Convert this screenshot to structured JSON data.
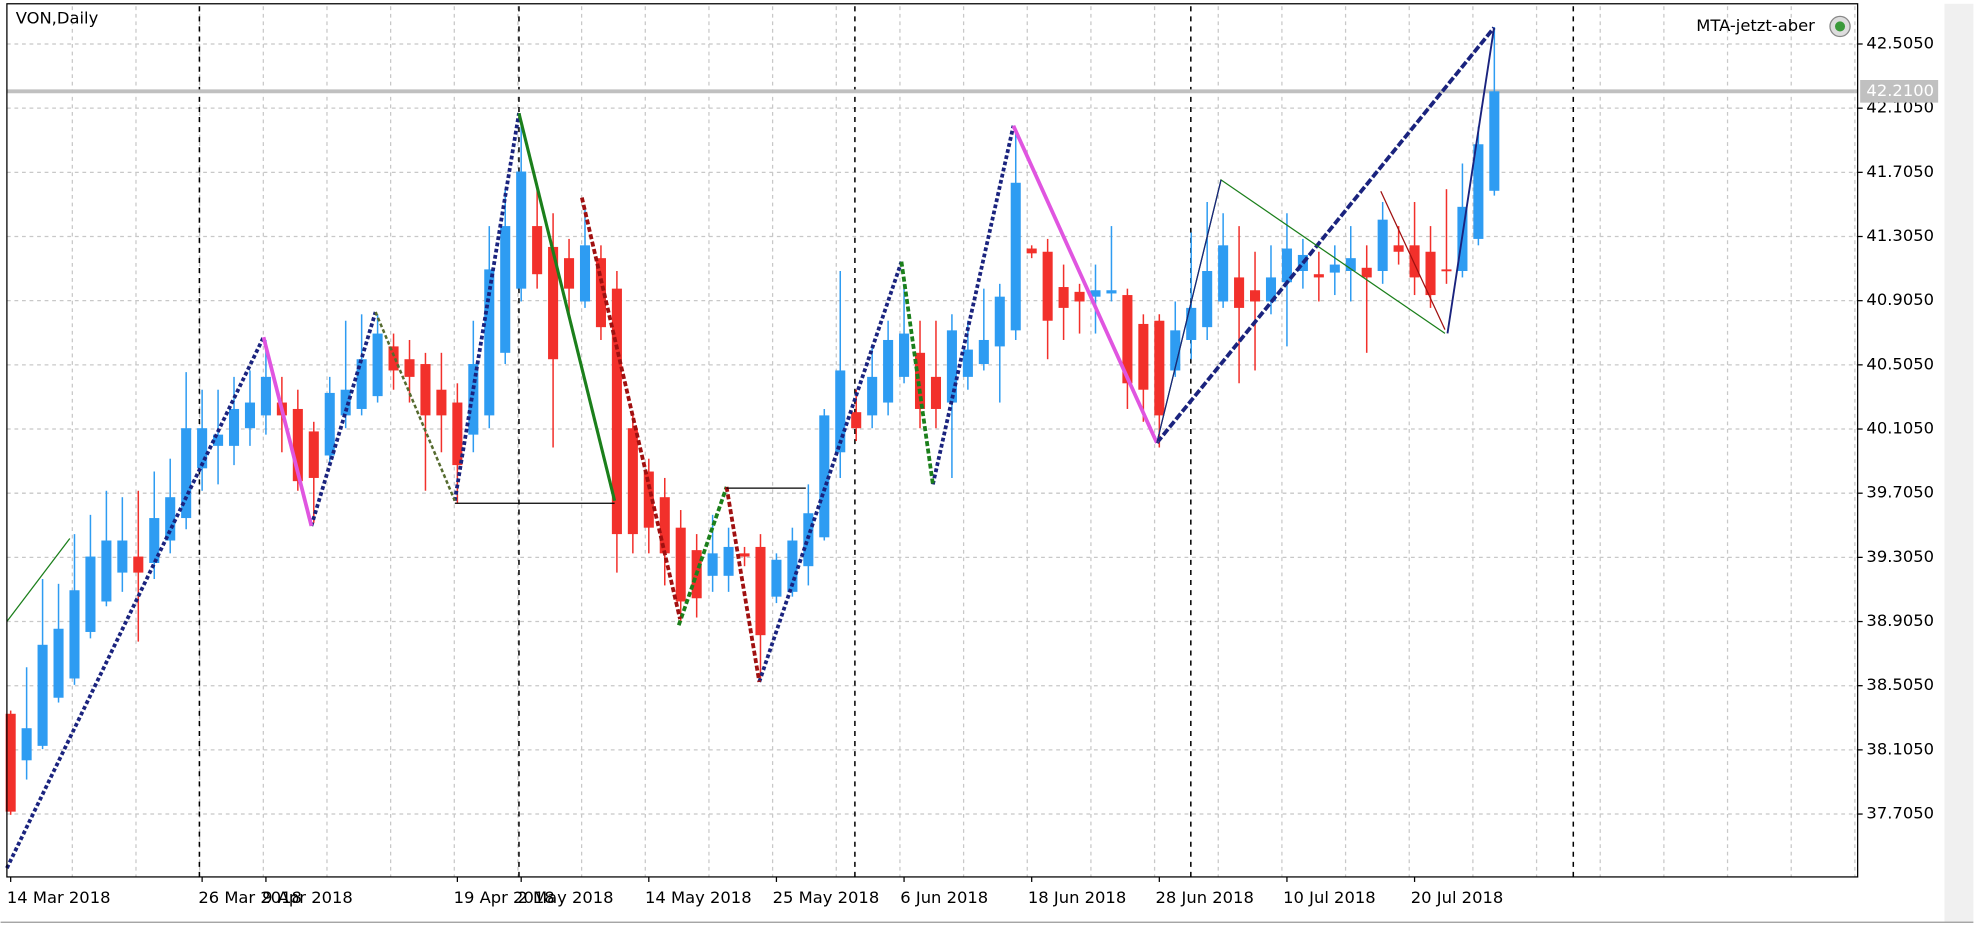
{
  "chart_data": {
    "type": "candlestick",
    "title": "VON,Daily",
    "indicator_label": "MTA-jetzt-aber",
    "categories": [
      "14 Mar 2018",
      null,
      null,
      null,
      null,
      null,
      null,
      null,
      null,
      null,
      null,
      null,
      "26 Mar 2018",
      null,
      null,
      null,
      "9 Apr 2018",
      null,
      null,
      null,
      null,
      null,
      null,
      null,
      null,
      null,
      null,
      null,
      "19 Apr 2018",
      null,
      null,
      null,
      "2 May 2018",
      null,
      null,
      null,
      null,
      null,
      null,
      null,
      "14 May 2018",
      null,
      null,
      null,
      null,
      null,
      null,
      null,
      "25 May 2018",
      null,
      null,
      null,
      null,
      null,
      null,
      null,
      "6 Jun 2018",
      null,
      null,
      null,
      null,
      null,
      null,
      null,
      "18 Jun 2018",
      null,
      null,
      null,
      null,
      null,
      null,
      null,
      "28 Jun 2018",
      null,
      null,
      null,
      null,
      null,
      null,
      null,
      "10 Jul 2018",
      null,
      null,
      null,
      null,
      null,
      null,
      null,
      "20 Jul 2018",
      null,
      null,
      null,
      null,
      null
    ],
    "open": [
      38.33,
      38.04,
      38.13,
      38.43,
      38.55,
      38.84,
      39.03,
      39.21,
      39.31,
      39.27,
      39.41,
      39.55,
      39.86,
      40.0,
      40.0,
      40.11,
      40.19,
      40.27,
      40.23,
      40.09,
      39.94,
      40.19,
      40.23,
      40.31,
      40.62,
      40.54,
      40.51,
      40.35,
      40.27,
      40.07,
      40.19,
      40.58,
      40.98,
      41.37,
      41.24,
      41.17,
      40.9,
      41.17,
      40.98,
      40.11,
      39.84,
      39.68,
      39.49,
      39.35,
      39.19,
      39.19,
      39.33,
      39.37,
      39.06,
      39.09,
      39.25,
      39.43,
      39.96,
      40.21,
      40.19,
      40.27,
      40.43,
      40.58,
      40.43,
      40.27,
      40.43,
      40.51,
      40.62,
      40.72,
      41.23,
      41.21,
      40.99,
      40.96,
      40.93,
      40.95,
      40.94,
      40.76,
      40.78,
      40.47,
      40.66,
      40.74,
      40.9,
      41.05,
      40.97,
      40.9,
      41.02,
      41.09,
      41.07,
      41.08,
      41.09,
      41.11,
      41.09,
      41.25,
      41.25,
      41.21,
      41.1,
      41.09,
      41.29,
      41.59
    ],
    "high": [
      38.35,
      38.62,
      39.17,
      39.14,
      39.45,
      39.57,
      39.72,
      39.68,
      39.72,
      39.84,
      39.92,
      40.46,
      40.35,
      40.35,
      40.43,
      40.47,
      40.66,
      40.43,
      40.35,
      40.15,
      40.43,
      40.78,
      40.82,
      40.82,
      40.7,
      40.66,
      40.58,
      40.58,
      40.39,
      40.78,
      41.37,
      41.6,
      42.03,
      41.6,
      41.45,
      41.29,
      41.49,
      41.25,
      41.09,
      40.19,
      39.92,
      39.8,
      39.6,
      39.45,
      39.57,
      39.49,
      39.37,
      39.45,
      39.33,
      39.49,
      39.76,
      40.23,
      41.09,
      40.35,
      40.62,
      40.78,
      41.01,
      40.78,
      40.78,
      40.82,
      40.78,
      40.98,
      41.01,
      41.96,
      41.25,
      41.29,
      41.13,
      41.01,
      41.13,
      41.37,
      40.98,
      40.82,
      40.82,
      40.9,
      41.33,
      41.52,
      41.45,
      41.37,
      41.21,
      41.25,
      41.45,
      41.29,
      41.21,
      41.25,
      41.37,
      41.25,
      41.52,
      41.37,
      41.52,
      41.37,
      41.6,
      41.76,
      41.99,
      42.61
    ],
    "low": [
      37.7,
      37.92,
      38.11,
      38.4,
      38.51,
      38.8,
      39.0,
      39.09,
      38.78,
      39.17,
      39.33,
      39.48,
      39.72,
      39.76,
      39.88,
      40.0,
      40.07,
      39.96,
      39.72,
      39.52,
      39.88,
      40.11,
      40.19,
      40.27,
      40.35,
      40.27,
      39.72,
      39.96,
      39.64,
      39.96,
      40.11,
      40.51,
      40.9,
      40.98,
      39.99,
      40.82,
      40.86,
      40.66,
      39.21,
      39.33,
      39.33,
      39.13,
      38.9,
      38.93,
      39.09,
      39.09,
      39.25,
      38.55,
      39.02,
      39.06,
      39.13,
      39.41,
      39.8,
      40.03,
      40.11,
      40.19,
      40.39,
      40.11,
      40.11,
      39.8,
      40.35,
      40.47,
      40.27,
      40.66,
      41.17,
      40.54,
      40.66,
      40.7,
      40.7,
      40.9,
      40.23,
      40.15,
      39.99,
      40.43,
      40.54,
      40.66,
      40.86,
      40.39,
      40.47,
      40.82,
      40.62,
      40.98,
      40.9,
      40.94,
      40.9,
      40.58,
      41.01,
      41.13,
      40.94,
      40.86,
      41.01,
      41.05,
      41.25,
      41.56
    ],
    "close": [
      37.72,
      38.24,
      38.76,
      38.86,
      39.1,
      39.31,
      39.41,
      39.41,
      39.21,
      39.55,
      39.68,
      40.11,
      40.11,
      40.07,
      40.23,
      40.27,
      40.43,
      40.19,
      39.78,
      39.8,
      40.33,
      40.35,
      40.54,
      40.7,
      40.47,
      40.43,
      40.19,
      40.19,
      39.88,
      40.51,
      41.1,
      41.37,
      41.71,
      41.07,
      40.54,
      40.98,
      41.25,
      40.74,
      39.45,
      39.45,
      39.49,
      39.33,
      39.03,
      39.05,
      39.33,
      39.37,
      39.31,
      38.82,
      39.29,
      39.41,
      39.58,
      40.19,
      40.47,
      40.11,
      40.43,
      40.66,
      40.7,
      40.23,
      40.23,
      40.72,
      40.6,
      40.66,
      40.93,
      41.64,
      41.2,
      40.78,
      40.86,
      40.9,
      40.97,
      40.97,
      40.39,
      40.35,
      40.19,
      40.72,
      40.86,
      41.09,
      41.25,
      40.86,
      40.9,
      41.05,
      41.23,
      41.19,
      41.05,
      41.13,
      41.17,
      41.05,
      41.41,
      41.21,
      41.05,
      40.94,
      41.09,
      41.49,
      41.88,
      42.21
    ],
    "up_color": "#2e9cf2",
    "down_color": "#f2302b",
    "ylim": [
      37.313,
      42.74
    ],
    "yticks": [
      {
        "value": 42.505,
        "label": "42.5050"
      },
      {
        "value": 42.105,
        "label": "42.1050"
      },
      {
        "value": 41.705,
        "label": "41.7050"
      },
      {
        "value": 41.305,
        "label": "41.3050"
      },
      {
        "value": 40.905,
        "label": "40.9050"
      },
      {
        "value": 40.505,
        "label": "40.5050"
      },
      {
        "value": 40.105,
        "label": "40.1050"
      },
      {
        "value": 39.705,
        "label": "39.7050"
      },
      {
        "value": 39.305,
        "label": "39.3050"
      },
      {
        "value": 38.905,
        "label": "38.9050"
      },
      {
        "value": 38.505,
        "label": "38.5050"
      },
      {
        "value": 38.105,
        "label": "38.1050"
      },
      {
        "value": 37.705,
        "label": "37.7050"
      }
    ],
    "bid_line": {
      "value": 42.21,
      "label": "42.2100"
    },
    "grid": true
  }
}
